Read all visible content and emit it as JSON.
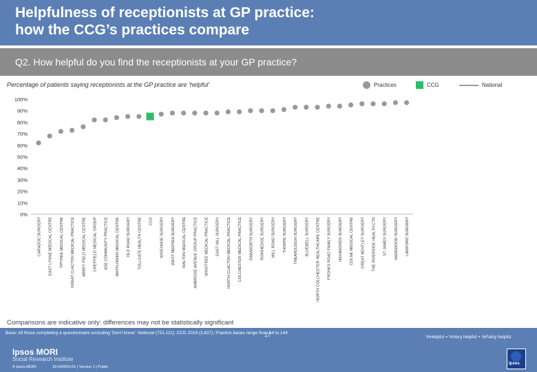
{
  "header": {
    "title_line1": "Helpfulness of receptionists at GP practice:",
    "title_line2": "how the CCG’s practices compare"
  },
  "question": "Q2. How helpful do you find the receptionists at your GP practice?",
  "subtitle": "Percentage of patients saying receptionists at the GP practice are ‘helpful’",
  "legend": {
    "practices": "Practices",
    "ccg": "CCG",
    "national": "National"
  },
  "colors": {
    "practices": "#999999",
    "ccg": "#2bbd69",
    "national": "#999999",
    "header": "#5b7fb5",
    "question_bar": "#8c8c8c"
  },
  "chart_data": {
    "type": "scatter",
    "ylim": [
      0,
      100
    ],
    "yticks": [
      "0%",
      "10%",
      "20%",
      "30%",
      "40%",
      "50%",
      "60%",
      "70%",
      "80%",
      "90%",
      "100%"
    ],
    "highlight_category": "CCG",
    "categories": [
      "CARADOC SURGERY",
      "EAST LYNNE MEDICAL CENTRE",
      "TIPTREE MEDICAL CENTRE",
      "GREAT CLACTON MEDICAL PRACTICE",
      "ABBEY FIELD MEDICAL CENTRE",
      "CREFFIELD MEDICAL GROUP",
      "ASE COMMUNITY PRACTICE",
      "MAYFLOWER MEDICAL CENTRE",
      "OLD ROAD SURGERY",
      "TOLLGATE HEALTH CENTRE",
      "CCG",
      "WIVENHOE SURGERY",
      "WEST MERSEA SURGERY",
      "WALTON MEDICAL CENTRE",
      "AMBROSE AVENUE GROUP PRACTICE",
      "WINSTREE MEDICAL PRACTICE",
      "EAST HILL SURGERY",
      "NORTH CLACTON MEDICAL PRACTICE",
      "COLCHESTER MEDICAL PRACTICE",
      "RAWWORTH SURGERY",
      "ROWHEDGE SURGERY",
      "MILL ROAD SURGERY",
      "THORPE SURGERY",
      "THEARDLEIGH SURGERY",
      "BLUEBELL SURGERY",
      "NORTH COLCHESTER HEALTHCARE CENTRE",
      "FRONKS ROAD FAMILY SURGERY",
      "HIGHWOODS SURGERY",
      "COLNE MEDICAL CENTRE",
      "GREAT BENTLEY SURGERY",
      "THE RIVERSIDE HEALTH CTR",
      "ST JAMES SURGERY",
      "HAREWOOD SURGERY",
      "LAWFORD SURGERY"
    ],
    "values": [
      62,
      68,
      72,
      73,
      76,
      82,
      82,
      84,
      85,
      85,
      85,
      87,
      88,
      88,
      88,
      88,
      88,
      89,
      89,
      90,
      90,
      90,
      91,
      93,
      93,
      93,
      94,
      94,
      95,
      96,
      96,
      96,
      97,
      97
    ]
  },
  "comparisons": "Comparisons are indicative only: differences may not be statistically significant",
  "footer": {
    "base": "Base: All those completing a questionnaire excluding ‘Don’t know’: National (751,111); CCG 2019 (3,827); Practice bases range from 64 to 144",
    "note": "%Helpful = %Very helpful + %Fairly helpful",
    "page": "17",
    "logo_main": "Ipsos MORI",
    "logo_sub": "Social Research Institute",
    "copyright": "© Ipsos MORI",
    "job": "18-042653-01 | Version 1 | Public",
    "ipsos": "Ipsos"
  }
}
